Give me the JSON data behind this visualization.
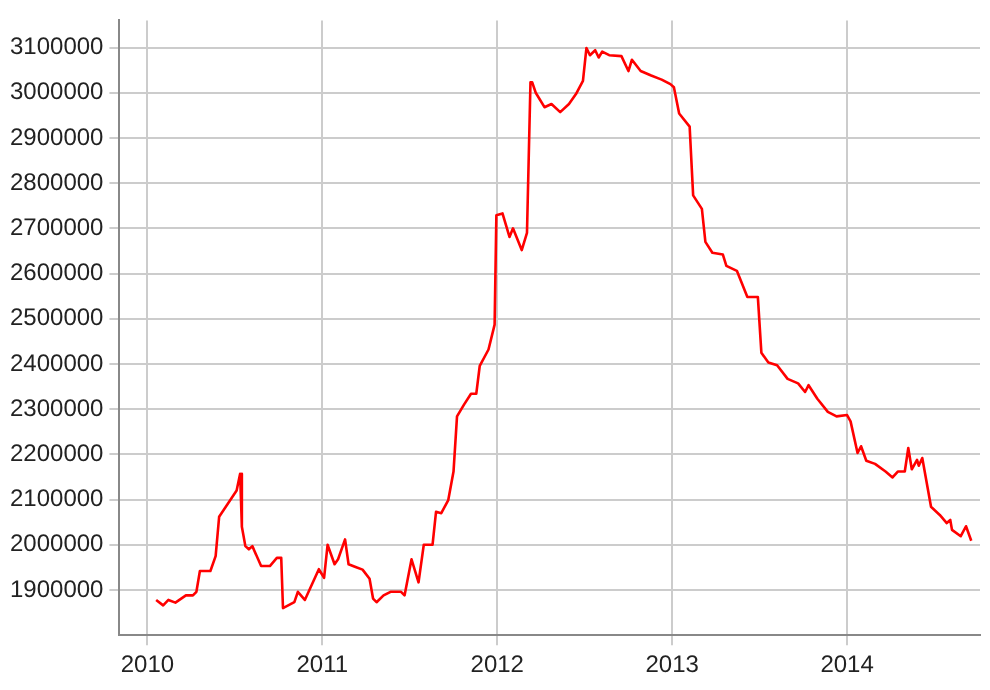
{
  "chart_data": {
    "type": "line",
    "x": [
      2010.05,
      2010.09,
      2010.12,
      2010.16,
      2010.22,
      2010.26,
      2010.28,
      2010.3,
      2010.36,
      2010.39,
      2010.41,
      2010.51,
      2010.53,
      2010.54,
      2010.56,
      2010.58,
      2010.6,
      2010.65,
      2010.7,
      2010.74,
      2010.765,
      2010.775,
      2010.84,
      2010.86,
      2010.9,
      2010.98,
      2011.01,
      2011.03,
      2011.07,
      2011.09,
      2011.13,
      2011.15,
      2011.19,
      2011.23,
      2011.27,
      2011.29,
      2011.31,
      2011.35,
      2011.39,
      2011.45,
      2011.47,
      2011.51,
      2011.55,
      2011.58,
      2011.63,
      2011.65,
      2011.68,
      2011.72,
      2011.75,
      2011.77,
      2011.81,
      2011.85,
      2011.88,
      2011.9,
      2011.95,
      2011.985,
      2011.995,
      2012.03,
      2012.07,
      2012.09,
      2012.14,
      2012.17,
      2012.19,
      2012.2,
      2012.22,
      2012.27,
      2012.31,
      2012.36,
      2012.41,
      2012.45,
      2012.49,
      2012.51,
      2012.53,
      2012.56,
      2012.58,
      2012.6,
      2012.64,
      2012.71,
      2012.75,
      2012.77,
      2012.82,
      2012.88,
      2012.94,
      2012.99,
      2013.01,
      2013.04,
      2013.1,
      2013.12,
      2013.17,
      2013.19,
      2013.23,
      2013.29,
      2013.31,
      2013.37,
      2013.43,
      2013.49,
      2013.51,
      2013.55,
      2013.6,
      2013.66,
      2013.72,
      2013.76,
      2013.78,
      2013.83,
      2013.89,
      2013.94,
      2014.0,
      2014.02,
      2014.06,
      2014.08,
      2014.11,
      2014.16,
      2014.22,
      2014.26,
      2014.29,
      2014.33,
      2014.35,
      2014.37,
      2014.4,
      2014.41,
      2014.43,
      2014.48,
      2014.53,
      2014.57,
      2014.59,
      2014.6,
      2014.65,
      2014.68,
      2014.71
    ],
    "series": [
      {
        "color": "#ff0000",
        "values": [
          1878000,
          1866000,
          1878000,
          1872000,
          1888000,
          1888000,
          1896000,
          1942000,
          1942000,
          1975000,
          2062000,
          2120000,
          2157000,
          2040000,
          1997000,
          1990000,
          1997000,
          1953000,
          1953000,
          1971000,
          1971000,
          1860000,
          1873000,
          1896000,
          1878000,
          1946000,
          1927000,
          2000000,
          1957000,
          1968000,
          2012000,
          1957000,
          1951000,
          1945000,
          1925000,
          1881000,
          1873000,
          1888000,
          1896000,
          1896000,
          1888000,
          1968000,
          1917000,
          2000000,
          2000000,
          2073000,
          2070000,
          2099000,
          2162000,
          2284000,
          2310000,
          2334000,
          2334000,
          2396000,
          2432000,
          2487000,
          2729000,
          2733000,
          2681000,
          2700000,
          2652000,
          2690000,
          3023000,
          3023000,
          3000000,
          2968000,
          2975000,
          2957000,
          2975000,
          2997000,
          3026000,
          3099000,
          3083000,
          3094000,
          3078000,
          3091000,
          3083000,
          3081000,
          3048000,
          3073000,
          3048000,
          3038000,
          3029000,
          3019000,
          3012000,
          2954000,
          2925000,
          2773000,
          2743000,
          2670000,
          2646000,
          2642000,
          2617000,
          2606000,
          2548000,
          2548000,
          2425000,
          2403000,
          2397000,
          2367000,
          2357000,
          2338000,
          2353000,
          2323000,
          2294000,
          2284000,
          2287000,
          2273000,
          2203000,
          2218000,
          2186000,
          2179000,
          2162000,
          2149000,
          2162000,
          2162000,
          2214000,
          2167000,
          2188000,
          2175000,
          2192000,
          2084000,
          2066000,
          2048000,
          2055000,
          2033000,
          2019000,
          2041000,
          2009000
        ]
      }
    ],
    "xlim": [
      2009.84,
      2014.76
    ],
    "xticks": [
      2010,
      2011,
      2012,
      2013,
      2014
    ],
    "ylim": [
      1800000,
      3160000
    ],
    "yticks": [
      1900000,
      2000000,
      2100000,
      2200000,
      2300000,
      2400000,
      2500000,
      2600000,
      2700000,
      2800000,
      2900000,
      3000000,
      3100000
    ],
    "grid": true,
    "legend": false,
    "marker": "none",
    "line_style": "solid"
  }
}
